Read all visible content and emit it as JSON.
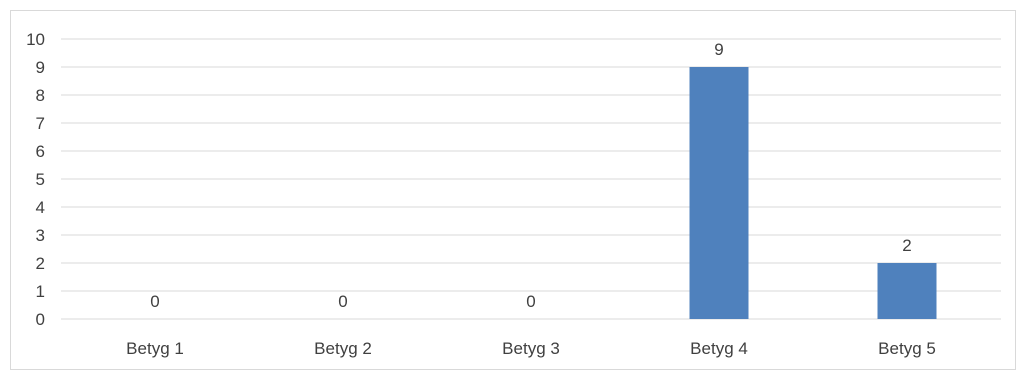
{
  "chart_data": {
    "type": "bar",
    "categories": [
      "Betyg 1",
      "Betyg 2",
      "Betyg 3",
      "Betyg 4",
      "Betyg 5"
    ],
    "values": [
      0,
      0,
      0,
      9,
      2
    ],
    "data_labels": [
      "0",
      "0",
      "0",
      "9",
      "2"
    ],
    "yticks": [
      "0",
      "1",
      "2",
      "3",
      "4",
      "5",
      "6",
      "7",
      "8",
      "9",
      "10"
    ],
    "ylim": [
      0,
      10
    ],
    "title": "",
    "xlabel": "",
    "ylabel": "",
    "grid": true,
    "legend": "none",
    "bar_color": "#4f81bd",
    "grid_color": "#d9d9d9"
  }
}
